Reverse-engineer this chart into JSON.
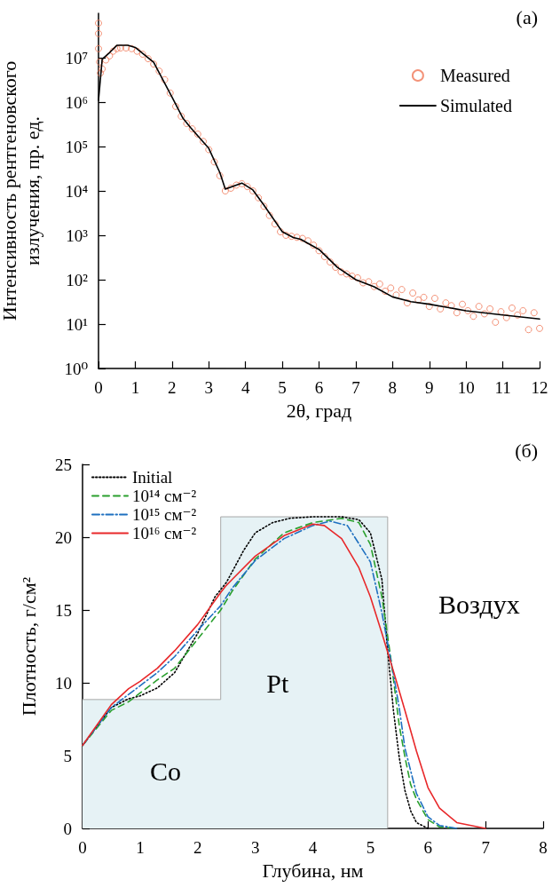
{
  "chart_data": [
    {
      "type": "scatter",
      "xlabel": "2θ, град",
      "ylabel": "Интенсивность рентгеновского излучения, пр. ед.",
      "xlim": [
        0,
        12
      ],
      "xticks": [
        0,
        1,
        2,
        3,
        4,
        5,
        6,
        7,
        8,
        9,
        10,
        11,
        12
      ],
      "ylim": [
        1,
        100000000
      ],
      "log": "y",
      "yticks": [
        {
          "value": 1,
          "label": "10⁰"
        },
        {
          "value": 10,
          "label": "10¹"
        },
        {
          "value": 100,
          "label": "10²"
        },
        {
          "value": 1000,
          "label": "10³"
        },
        {
          "value": 10000,
          "label": "10⁴"
        },
        {
          "value": 100000,
          "label": "10⁵"
        },
        {
          "value": 1000000,
          "label": "10⁶"
        },
        {
          "value": 10000000,
          "label": "10⁷"
        }
      ],
      "legend": "top right",
      "grid": false,
      "annotations": [
        "(a)"
      ],
      "series": [
        {
          "name": "Measured",
          "marker": "circle",
          "color": "#f07858",
          "x": [
            0,
            0,
            0,
            0.03,
            0.05,
            0.1,
            0.2,
            0.3,
            0.4,
            0.5,
            0.6,
            0.75,
            0.9,
            1.05,
            1.2,
            1.35,
            1.5,
            1.65,
            1.8,
            1.95,
            2.1,
            2.25,
            2.4,
            2.55,
            2.7,
            2.85,
            3.0,
            3.15,
            3.3,
            3.45,
            3.6,
            3.75,
            3.9,
            4.05,
            4.2,
            4.35,
            4.5,
            4.65,
            4.8,
            4.95,
            5.1,
            5.25,
            5.4,
            5.55,
            5.7,
            5.85,
            6.0,
            6.15,
            6.3,
            6.45,
            6.6,
            6.75,
            6.9,
            7.05,
            7.2,
            7.35,
            7.5,
            7.65,
            7.8,
            7.95,
            8.1,
            8.25,
            8.4,
            8.55,
            8.7,
            8.85,
            9.0,
            9.15,
            9.3,
            9.45,
            9.6,
            9.75,
            9.9,
            10.05,
            10.2,
            10.35,
            10.5,
            10.65,
            10.8,
            10.95,
            11.1,
            11.25,
            11.4,
            11.55,
            11.7,
            11.85,
            12.0
          ],
          "values": [
            60000000,
            35000000,
            16000000,
            8000000,
            4500000,
            5600000,
            8900000,
            11000000,
            14000000,
            16000000,
            16600000,
            16600000,
            16000000,
            14000000,
            12000000,
            9500000,
            7200000,
            5000000,
            3200000,
            1600000,
            800000,
            480000,
            330000,
            250000,
            190000,
            130000,
            85000,
            45000,
            22000,
            10000,
            11500,
            13500,
            14500,
            12500,
            10000,
            7000,
            4500,
            2800,
            1800,
            1200,
            1000,
            950,
            900,
            850,
            750,
            600,
            450,
            330,
            250,
            190,
            150,
            135,
            120,
            110,
            85,
            90,
            70,
            80,
            55,
            65,
            45,
            60,
            30,
            50,
            35,
            40,
            25,
            38,
            22,
            30,
            26,
            18,
            28,
            20,
            15,
            25,
            17,
            22,
            11,
            19,
            14,
            23,
            16,
            20,
            7.5,
            18,
            8
          ]
        },
        {
          "name": "Simulated",
          "type": "line",
          "marker": "none",
          "line_style": "solid",
          "color": "#000000",
          "x": [
            0,
            0.1,
            0.3,
            0.5,
            0.8,
            1.0,
            1.5,
            2.0,
            2.3,
            2.5,
            3.0,
            3.3,
            3.45,
            3.9,
            4.2,
            4.5,
            5.0,
            5.3,
            5.5,
            6.0,
            6.5,
            7.0,
            7.5,
            8.0,
            8.5,
            9.0,
            10.0,
            11.0,
            12.0
          ],
          "values": [
            1100000,
            9300000,
            13000000,
            19000000,
            19000000,
            17000000,
            7900000,
            1300000,
            430000,
            270000,
            91000,
            26000,
            11000,
            15000,
            10500,
            4800,
            1200,
            890,
            810,
            480,
            190,
            100,
            69,
            41,
            32,
            28,
            20,
            16,
            13
          ]
        }
      ]
    },
    {
      "type": "line",
      "xlabel": "Глубина, нм",
      "ylabel": "Плотность, г/см²",
      "xlim": [
        0,
        8
      ],
      "xticks": [
        0,
        1,
        2,
        3,
        4,
        5,
        6,
        7,
        8
      ],
      "ylim": [
        0,
        25
      ],
      "yticks": [
        0,
        5,
        10,
        15,
        20,
        25
      ],
      "legend": "top left",
      "grid": false,
      "marker": "none",
      "annotations": [
        "(б)",
        "Co",
        "Pt",
        "Воздух"
      ],
      "series": [
        {
          "type": "area",
          "color": "#e6f2f5",
          "x": [
            0,
            2.4,
            2.4,
            5.3,
            5.3
          ],
          "values": [
            8.85,
            8.85,
            21.4,
            21.4,
            0
          ]
        },
        {
          "name": "Initial",
          "line_style": "dotted",
          "color": "#000000",
          "x": [
            0,
            0.5,
            0.8,
            1.0,
            1.3,
            1.6,
            2.0,
            2.3,
            2.5,
            2.8,
            3.0,
            3.3,
            3.6,
            4.0,
            4.5,
            4.8,
            5.0,
            5.2,
            5.3,
            5.4,
            5.5,
            5.6,
            5.7,
            5.8,
            6.0
          ],
          "values": [
            5.7,
            8.3,
            8.9,
            9.1,
            9.65,
            10.7,
            13.4,
            15.9,
            16.9,
            19.1,
            20.3,
            21.0,
            21.3,
            21.4,
            21.4,
            21.2,
            20.3,
            17.1,
            12.2,
            8.1,
            4.9,
            2.6,
            1.2,
            0.4,
            0
          ]
        },
        {
          "name": "10¹⁴ см⁻²",
          "line_style": "dashed",
          "color": "#2aa02e",
          "x": [
            0,
            0.5,
            0.8,
            1.0,
            1.3,
            1.6,
            2.0,
            2.4,
            2.6,
            3.0,
            3.5,
            4.0,
            4.5,
            4.8,
            5.0,
            5.2,
            5.35,
            5.5,
            5.6,
            5.7,
            5.8,
            6.0,
            6.2,
            6.5
          ],
          "values": [
            5.7,
            8.1,
            8.7,
            9.3,
            10.2,
            11.0,
            13.0,
            15.0,
            16.3,
            18.5,
            20.3,
            21.0,
            21.3,
            21.0,
            19.5,
            15.9,
            11.8,
            7.1,
            4.9,
            3.0,
            2.0,
            0.6,
            0.1,
            0
          ]
        },
        {
          "name": "10¹⁵ см⁻²",
          "line_style": "dashdot",
          "color": "#1f70c0",
          "x": [
            0,
            0.5,
            0.8,
            1.0,
            1.3,
            1.6,
            2.0,
            2.4,
            2.6,
            3.0,
            3.5,
            4.0,
            4.3,
            4.6,
            5.0,
            5.2,
            5.4,
            5.5,
            5.6,
            5.8,
            6.0,
            6.2,
            6.5
          ],
          "values": [
            5.7,
            8.3,
            9.2,
            9.8,
            10.7,
            11.8,
            13.6,
            15.3,
            16.5,
            18.4,
            19.9,
            20.8,
            21.1,
            20.8,
            18.3,
            14.8,
            10.6,
            8.3,
            5.5,
            2.4,
            0.8,
            0.2,
            0
          ]
        },
        {
          "name": "10¹⁶ см⁻²",
          "line_style": "solid",
          "color": "#e8282a",
          "x": [
            0,
            0.5,
            0.8,
            1.0,
            1.3,
            1.6,
            2.0,
            2.4,
            2.5,
            2.6,
            3.0,
            3.5,
            4.0,
            4.2,
            4.5,
            4.8,
            5.0,
            5.2,
            5.4,
            5.6,
            5.8,
            6.0,
            6.2,
            6.5,
            7.0
          ],
          "values": [
            5.7,
            8.5,
            9.6,
            10.1,
            11.0,
            12.2,
            14.0,
            16.2,
            16.7,
            17.1,
            18.7,
            20.1,
            20.9,
            20.8,
            19.9,
            17.9,
            15.9,
            13.4,
            10.8,
            8.1,
            5.3,
            2.8,
            1.4,
            0.4,
            0
          ]
        }
      ]
    }
  ]
}
